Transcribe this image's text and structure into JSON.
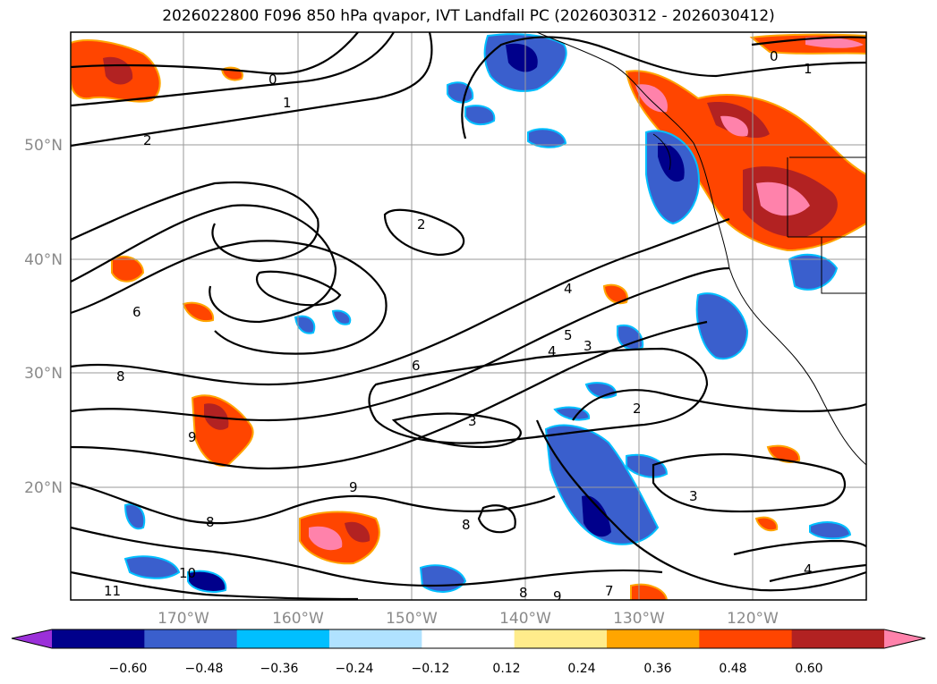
{
  "title": "2026022800 F096 850 hPa qvapor, IVT Landfall PC (2026030312 - 2026030412)",
  "lat_labels": [
    "50°N",
    "40°N",
    "30°N",
    "20°N"
  ],
  "lon_labels": [
    "170°W",
    "160°W",
    "150°W",
    "140°W",
    "130°W",
    "120°W"
  ],
  "colorbar": {
    "ticks": [
      "−0.60",
      "−0.48",
      "−0.36",
      "−0.24",
      "−0.12",
      "0.12",
      "0.24",
      "0.36",
      "0.48",
      "0.60"
    ],
    "colors": [
      "#9b30d9",
      "#00008b",
      "#3a5fcd",
      "#00bfff",
      "#b0e2ff",
      "#ffffff",
      "#ffec8b",
      "#ffa500",
      "#ff4500",
      "#b22222",
      "#ff82ab"
    ]
  },
  "contour_labels": [
    "0",
    "0",
    "1",
    "1",
    "2",
    "2",
    "2",
    "3",
    "3",
    "3",
    "4",
    "4",
    "4",
    "5",
    "6",
    "6",
    "7",
    "8",
    "8",
    "8",
    "8",
    "9",
    "9",
    "9",
    "10",
    "11"
  ]
}
